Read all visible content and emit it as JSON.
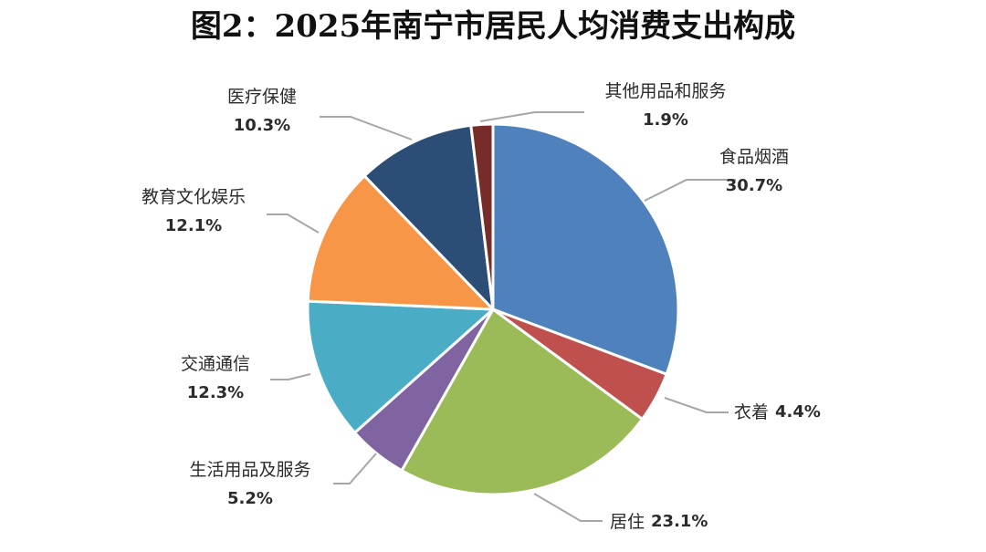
{
  "chart_data": {
    "type": "pie",
    "title": "图2：2025年南宁市居民人均消费支出构成",
    "slices": [
      {
        "name": "食品烟酒",
        "value": 30.7,
        "label": "30.7%",
        "color": "#4F81BD"
      },
      {
        "name": "衣着",
        "value": 4.4,
        "label": "4.4%",
        "color": "#C0504D"
      },
      {
        "name": "居住",
        "value": 23.1,
        "label": "23.1%",
        "color": "#9BBB59"
      },
      {
        "name": "生活用品及服务",
        "value": 5.2,
        "label": "5.2%",
        "color": "#8064A2"
      },
      {
        "name": "交通通信",
        "value": 12.3,
        "label": "12.3%",
        "color": "#4BACC6"
      },
      {
        "name": "教育文化娱乐",
        "value": 12.1,
        "label": "12.1%",
        "color": "#F79646"
      },
      {
        "name": "医疗保健",
        "value": 10.3,
        "label": "10.3%",
        "color": "#2C4D75"
      },
      {
        "name": "其他用品和服务",
        "value": 1.9,
        "label": "1.9%",
        "color": "#772C2A"
      }
    ]
  }
}
